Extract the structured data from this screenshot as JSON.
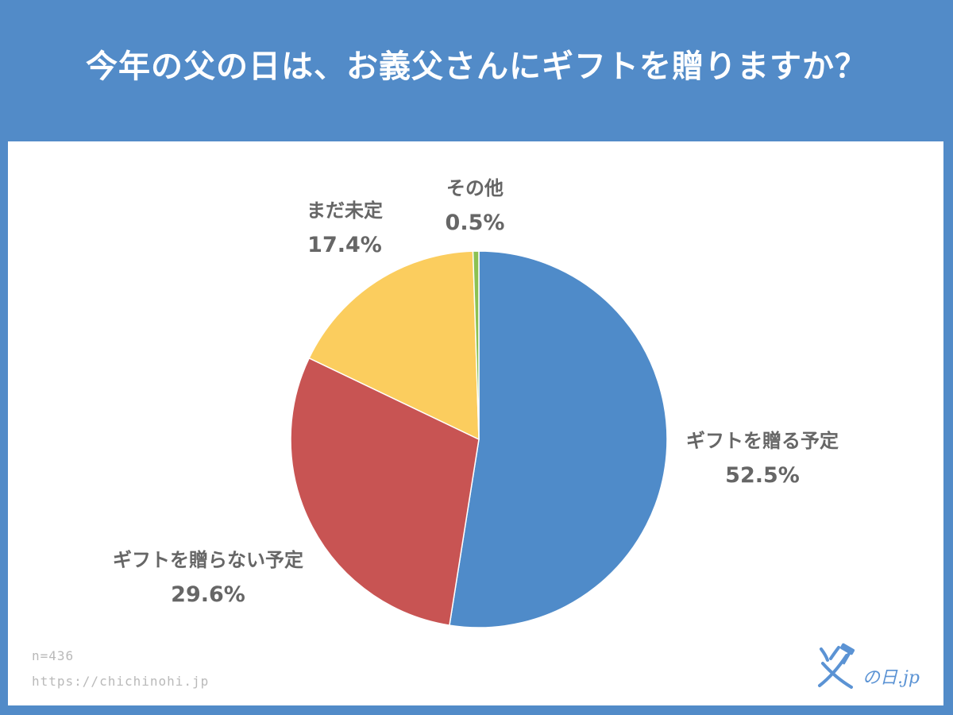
{
  "title": "今年の父の日は、お義父さんにギフトを贈りますか？",
  "chart_data": {
    "type": "pie",
    "title": "今年の父の日は、お義父さんにギフトを贈りますか？",
    "slices": [
      {
        "label": "ギフトを贈る予定",
        "value": 52.5,
        "value_label": "52.5%",
        "color": "#4f8bc9"
      },
      {
        "label": "ギフトを贈らない予定",
        "value": 29.6,
        "value_label": "29.6%",
        "color": "#c85453"
      },
      {
        "label": "まだ未定",
        "value": 17.4,
        "value_label": "17.4%",
        "color": "#fbcd5e"
      },
      {
        "label": "その他",
        "value": 0.5,
        "value_label": "0.5%",
        "color": "#8cc152"
      }
    ],
    "start": "12 o'clock",
    "direction": "clockwise",
    "legend": "none"
  },
  "footer": {
    "sample_size": "n=436",
    "url": "https://chichinohi.jp"
  },
  "logo": {
    "text": "の日.jp",
    "color": "#5b93d4"
  }
}
